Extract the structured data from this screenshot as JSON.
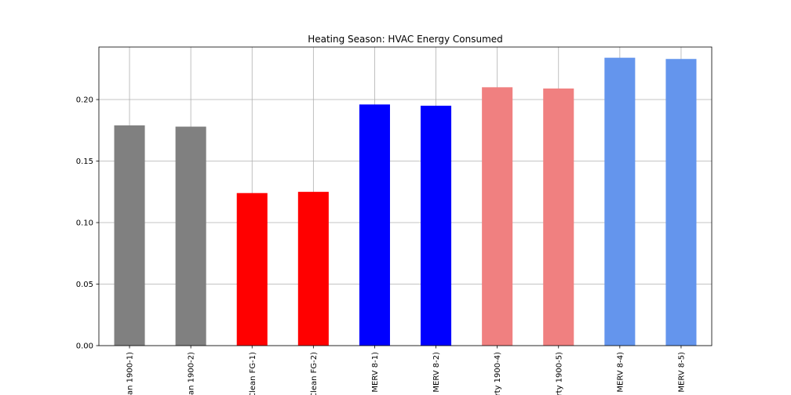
{
  "chart_data": {
    "type": "bar",
    "title": "Heating Season: HVAC Energy Consumed",
    "xlabel": "",
    "ylabel": "",
    "categories": [
      "...an 1900-1)",
      "...an 1900-2)",
      "...Clean FG-1)",
      "...Clean FG-2)",
      "... MERV 8-1)",
      "... MERV 8-2)",
      "...rty 1900-4)",
      "...rty 1900-5)",
      "... MERV 8-4)",
      "... MERV 8-5)"
    ],
    "values": [
      0.179,
      0.178,
      0.124,
      0.125,
      0.196,
      0.195,
      0.21,
      0.209,
      0.234,
      0.233
    ],
    "colors": [
      "#808080",
      "#808080",
      "#ff0000",
      "#ff0000",
      "#0000ff",
      "#0000ff",
      "#f08080",
      "#f08080",
      "#6495ed",
      "#6495ed"
    ],
    "ylim": [
      0,
      0.2427
    ],
    "yticks": [
      "0.00",
      "0.05",
      "0.10",
      "0.15",
      "0.20"
    ],
    "grid": true,
    "legend": "none"
  }
}
